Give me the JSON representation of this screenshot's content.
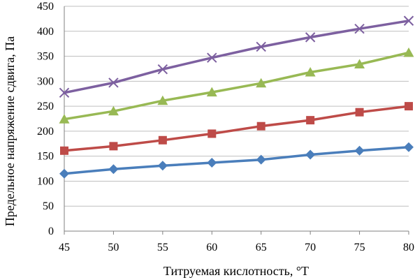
{
  "chart_data": {
    "type": "line",
    "title": "",
    "xlabel": "Титруемая кислотность, °Т",
    "ylabel": "Предельное напряжение сдвига, Па",
    "x": [
      45,
      50,
      55,
      60,
      65,
      70,
      75,
      80
    ],
    "xlim": [
      45,
      80
    ],
    "ylim": [
      0,
      450
    ],
    "x_ticks": [
      "45",
      "50",
      "55",
      "60",
      "65",
      "70",
      "75",
      "80"
    ],
    "y_ticks": [
      "0",
      "50",
      "100",
      "150",
      "200",
      "250",
      "300",
      "350",
      "400",
      "450"
    ],
    "grid": "horizontal",
    "legend": "none",
    "series": [
      {
        "marker": "diamond",
        "color": "#4a7ebb",
        "values": [
          115,
          124,
          131,
          137,
          143,
          153,
          161,
          168
        ]
      },
      {
        "marker": "square",
        "color": "#be4b48",
        "values": [
          161,
          170,
          182,
          195,
          210,
          222,
          238,
          250
        ]
      },
      {
        "marker": "triangle",
        "color": "#98b954",
        "values": [
          224,
          240,
          261,
          278,
          296,
          318,
          334,
          357
        ]
      },
      {
        "marker": "x",
        "color": "#7d60a0",
        "values": [
          277,
          297,
          324,
          347,
          369,
          388,
          405,
          421
        ]
      }
    ]
  }
}
